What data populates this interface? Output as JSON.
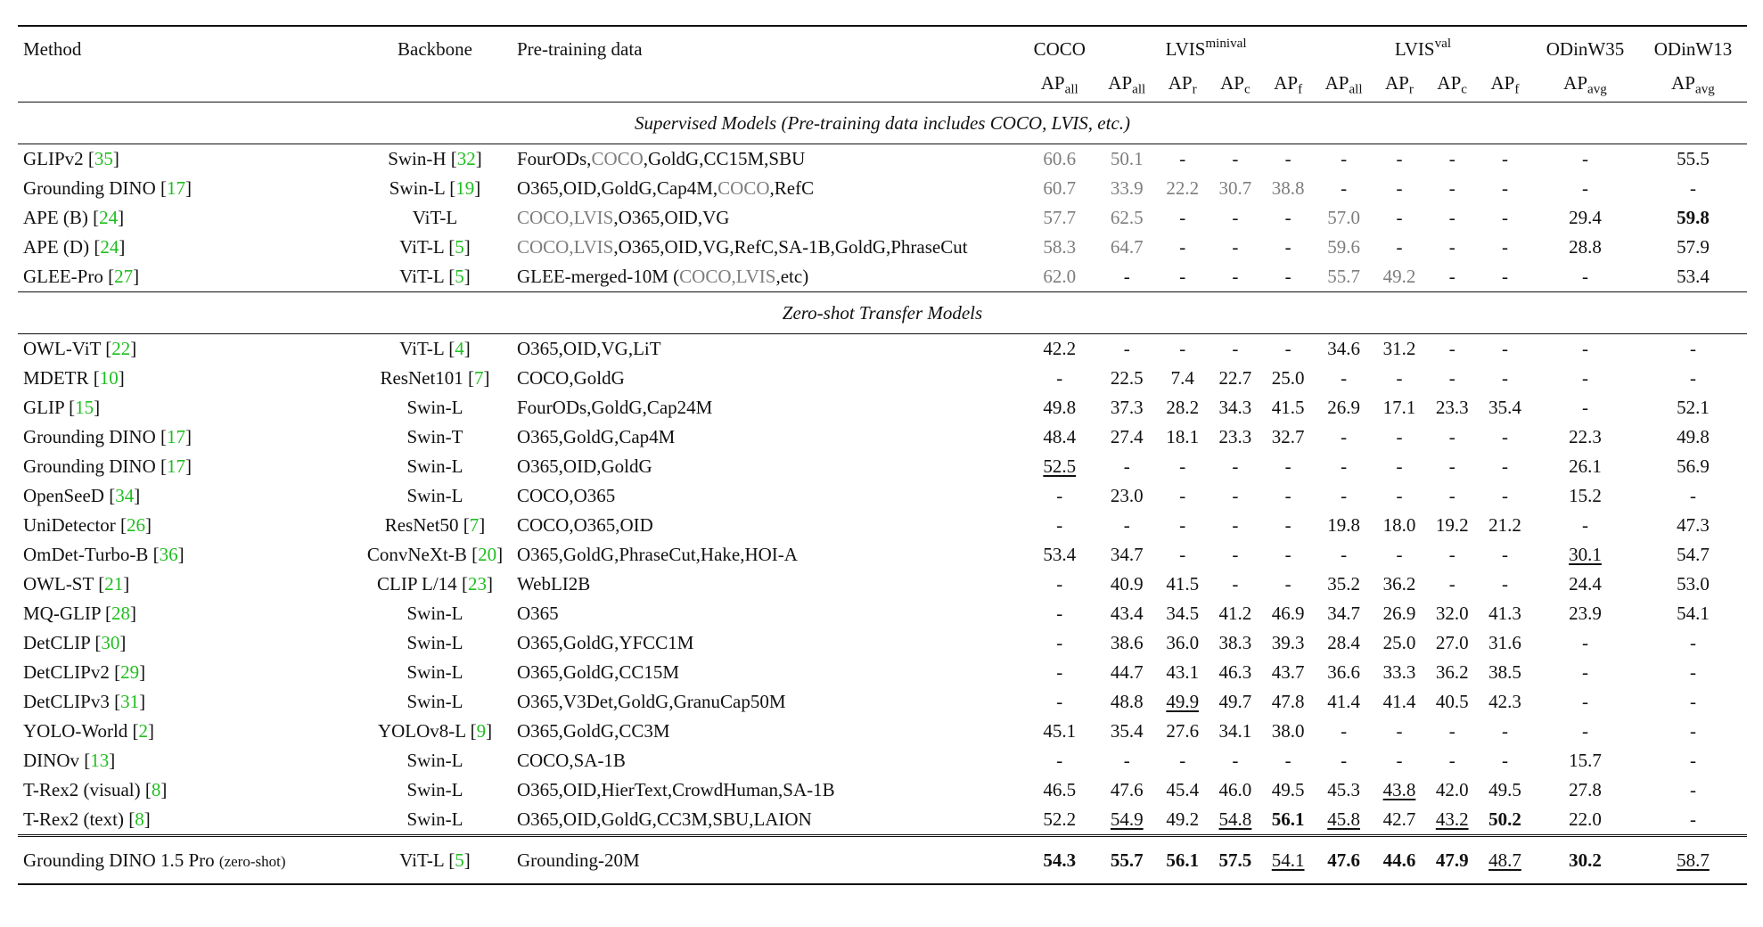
{
  "headers": {
    "method": "Method",
    "backbone": "Backbone",
    "pretrain": "Pre-training data",
    "coco": "COCO",
    "lvis_minival": "LVIS",
    "lvis_minival_sup": "minival",
    "lvis_val": "LVIS",
    "lvis_val_sup": "val",
    "odinw35": "ODinW35",
    "odinw13": "ODinW13",
    "ap": "AP",
    "sub_all": "all",
    "sub_r": "r",
    "sub_c": "c",
    "sub_f": "f",
    "sub_avg": "avg"
  },
  "sections": {
    "supervised": "Supervised Models (Pre-training data includes COCO, LVIS, etc.)",
    "zeroshot": "Zero-shot Transfer Models"
  },
  "supervised_rows": [
    {
      "method": {
        "name": "GLIPv2",
        "cite": "35"
      },
      "backbone": {
        "name": "Swin-H",
        "cite": "32"
      },
      "data": [
        {
          "t": "FourODs,"
        },
        {
          "t": "COCO",
          "g": true
        },
        {
          "t": ",GoldG,CC15M,SBU"
        }
      ],
      "cells": [
        {
          "v": "60.6",
          "g": true
        },
        {
          "v": "50.1",
          "g": true
        },
        {
          "v": "-"
        },
        {
          "v": "-"
        },
        {
          "v": "-"
        },
        {
          "v": "-"
        },
        {
          "v": "-"
        },
        {
          "v": "-"
        },
        {
          "v": "-"
        },
        {
          "v": "-"
        },
        {
          "v": "55.5"
        }
      ]
    },
    {
      "method": {
        "name": "Grounding DINO",
        "cite": "17"
      },
      "backbone": {
        "name": "Swin-L",
        "cite": "19"
      },
      "data": [
        {
          "t": "O365,OID,GoldG,Cap4M,"
        },
        {
          "t": "COCO",
          "g": true
        },
        {
          "t": ",RefC"
        }
      ],
      "cells": [
        {
          "v": "60.7",
          "g": true
        },
        {
          "v": "33.9",
          "g": true
        },
        {
          "v": "22.2",
          "g": true
        },
        {
          "v": "30.7",
          "g": true
        },
        {
          "v": "38.8",
          "g": true
        },
        {
          "v": "-"
        },
        {
          "v": "-"
        },
        {
          "v": "-"
        },
        {
          "v": "-"
        },
        {
          "v": "-"
        },
        {
          "v": "-"
        }
      ]
    },
    {
      "method": {
        "name": "APE (B)",
        "cite": "24"
      },
      "backbone": {
        "name": "ViT-L"
      },
      "data": [
        {
          "t": "COCO,LVIS",
          "g": true
        },
        {
          "t": ",O365,OID,VG"
        }
      ],
      "cells": [
        {
          "v": "57.7",
          "g": true
        },
        {
          "v": "62.5",
          "g": true
        },
        {
          "v": "-"
        },
        {
          "v": "-"
        },
        {
          "v": "-"
        },
        {
          "v": "57.0",
          "g": true
        },
        {
          "v": "-"
        },
        {
          "v": "-"
        },
        {
          "v": "-"
        },
        {
          "v": "29.4"
        },
        {
          "v": "59.8",
          "b": true
        }
      ]
    },
    {
      "method": {
        "name": "APE (D)",
        "cite": "24"
      },
      "backbone": {
        "name": "ViT-L",
        "cite": "5"
      },
      "data": [
        {
          "t": "COCO,LVIS",
          "g": true
        },
        {
          "t": ",O365,OID,VG,RefC,SA-1B,GoldG,PhraseCut"
        }
      ],
      "cells": [
        {
          "v": "58.3",
          "g": true
        },
        {
          "v": "64.7",
          "g": true
        },
        {
          "v": "-"
        },
        {
          "v": "-"
        },
        {
          "v": "-"
        },
        {
          "v": "59.6",
          "g": true
        },
        {
          "v": "-"
        },
        {
          "v": "-"
        },
        {
          "v": "-"
        },
        {
          "v": "28.8"
        },
        {
          "v": "57.9"
        }
      ]
    },
    {
      "method": {
        "name": "GLEE-Pro",
        "cite": "27"
      },
      "backbone": {
        "name": "ViT-L",
        "cite": "5"
      },
      "data": [
        {
          "t": "GLEE-merged-10M ("
        },
        {
          "t": "COCO,LVIS",
          "g": true
        },
        {
          "t": ",etc)"
        }
      ],
      "cells": [
        {
          "v": "62.0",
          "g": true
        },
        {
          "v": "-"
        },
        {
          "v": "-"
        },
        {
          "v": "-"
        },
        {
          "v": "-"
        },
        {
          "v": "55.7",
          "g": true
        },
        {
          "v": "49.2",
          "g": true
        },
        {
          "v": "-"
        },
        {
          "v": "-"
        },
        {
          "v": "-"
        },
        {
          "v": "53.4"
        }
      ]
    }
  ],
  "zeroshot_rows": [
    {
      "method": {
        "name": "OWL-ViT",
        "cite": "22"
      },
      "backbone": {
        "name": "ViT-L",
        "cite": "4"
      },
      "data": [
        {
          "t": "O365,OID,VG,LiT"
        }
      ],
      "cells": [
        {
          "v": "42.2"
        },
        {
          "v": "-"
        },
        {
          "v": "-"
        },
        {
          "v": "-"
        },
        {
          "v": "-"
        },
        {
          "v": "34.6"
        },
        {
          "v": "31.2"
        },
        {
          "v": "-"
        },
        {
          "v": "-"
        },
        {
          "v": "-"
        },
        {
          "v": "-"
        }
      ]
    },
    {
      "method": {
        "name": "MDETR",
        "cite": "10"
      },
      "backbone": {
        "name": "ResNet101",
        "cite": "7"
      },
      "data": [
        {
          "t": "COCO,GoldG"
        }
      ],
      "cells": [
        {
          "v": "-"
        },
        {
          "v": "22.5"
        },
        {
          "v": "7.4"
        },
        {
          "v": "22.7"
        },
        {
          "v": "25.0"
        },
        {
          "v": "-"
        },
        {
          "v": "-"
        },
        {
          "v": "-"
        },
        {
          "v": "-"
        },
        {
          "v": "-"
        },
        {
          "v": "-"
        }
      ]
    },
    {
      "method": {
        "name": "GLIP",
        "cite": "15"
      },
      "backbone": {
        "name": "Swin-L"
      },
      "data": [
        {
          "t": "FourODs,GoldG,Cap24M"
        }
      ],
      "cells": [
        {
          "v": "49.8"
        },
        {
          "v": "37.3"
        },
        {
          "v": "28.2"
        },
        {
          "v": "34.3"
        },
        {
          "v": "41.5"
        },
        {
          "v": "26.9"
        },
        {
          "v": "17.1"
        },
        {
          "v": "23.3"
        },
        {
          "v": "35.4"
        },
        {
          "v": "-"
        },
        {
          "v": "52.1"
        }
      ]
    },
    {
      "method": {
        "name": "Grounding DINO",
        "cite": "17"
      },
      "backbone": {
        "name": "Swin-T"
      },
      "data": [
        {
          "t": "O365,GoldG,Cap4M"
        }
      ],
      "cells": [
        {
          "v": "48.4"
        },
        {
          "v": "27.4"
        },
        {
          "v": "18.1"
        },
        {
          "v": "23.3"
        },
        {
          "v": "32.7"
        },
        {
          "v": "-"
        },
        {
          "v": "-"
        },
        {
          "v": "-"
        },
        {
          "v": "-"
        },
        {
          "v": "22.3"
        },
        {
          "v": "49.8"
        }
      ]
    },
    {
      "method": {
        "name": "Grounding DINO",
        "cite": "17"
      },
      "backbone": {
        "name": "Swin-L"
      },
      "data": [
        {
          "t": "O365,OID,GoldG"
        }
      ],
      "cells": [
        {
          "v": "52.5",
          "u": true
        },
        {
          "v": "-"
        },
        {
          "v": "-"
        },
        {
          "v": "-"
        },
        {
          "v": "-"
        },
        {
          "v": "-"
        },
        {
          "v": "-"
        },
        {
          "v": "-"
        },
        {
          "v": "-"
        },
        {
          "v": "26.1"
        },
        {
          "v": "56.9"
        }
      ]
    },
    {
      "method": {
        "name": "OpenSeeD",
        "cite": "34"
      },
      "backbone": {
        "name": "Swin-L"
      },
      "data": [
        {
          "t": "COCO,O365"
        }
      ],
      "cells": [
        {
          "v": "-"
        },
        {
          "v": "23.0"
        },
        {
          "v": "-"
        },
        {
          "v": "-"
        },
        {
          "v": "-"
        },
        {
          "v": "-"
        },
        {
          "v": "-"
        },
        {
          "v": "-"
        },
        {
          "v": "-"
        },
        {
          "v": "15.2"
        },
        {
          "v": "-"
        }
      ]
    },
    {
      "method": {
        "name": "UniDetector",
        "cite": "26"
      },
      "backbone": {
        "name": "ResNet50",
        "cite": "7"
      },
      "data": [
        {
          "t": "COCO,O365,OID"
        }
      ],
      "cells": [
        {
          "v": "-"
        },
        {
          "v": "-"
        },
        {
          "v": "-"
        },
        {
          "v": "-"
        },
        {
          "v": "-"
        },
        {
          "v": "19.8"
        },
        {
          "v": "18.0"
        },
        {
          "v": "19.2"
        },
        {
          "v": "21.2"
        },
        {
          "v": "-"
        },
        {
          "v": "47.3"
        }
      ]
    },
    {
      "method": {
        "name": "OmDet-Turbo-B",
        "cite": "36"
      },
      "backbone": {
        "name": "ConvNeXt-B",
        "cite": "20"
      },
      "data": [
        {
          "t": "O365,GoldG,PhraseCut,Hake,HOI-A"
        }
      ],
      "cells": [
        {
          "v": "53.4"
        },
        {
          "v": "34.7"
        },
        {
          "v": "-"
        },
        {
          "v": "-"
        },
        {
          "v": "-"
        },
        {
          "v": "-"
        },
        {
          "v": "-"
        },
        {
          "v": "-"
        },
        {
          "v": "-"
        },
        {
          "v": "30.1",
          "u": true
        },
        {
          "v": "54.7"
        }
      ]
    },
    {
      "method": {
        "name": "OWL-ST",
        "cite": "21"
      },
      "backbone": {
        "name": "CLIP L/14",
        "cite": "23"
      },
      "data": [
        {
          "t": "WebLI2B"
        }
      ],
      "cells": [
        {
          "v": "-"
        },
        {
          "v": "40.9"
        },
        {
          "v": "41.5"
        },
        {
          "v": "-"
        },
        {
          "v": "-"
        },
        {
          "v": "35.2"
        },
        {
          "v": "36.2"
        },
        {
          "v": "-"
        },
        {
          "v": "-"
        },
        {
          "v": "24.4"
        },
        {
          "v": "53.0"
        }
      ]
    },
    {
      "method": {
        "name": "MQ-GLIP",
        "cite": "28"
      },
      "backbone": {
        "name": "Swin-L"
      },
      "data": [
        {
          "t": "O365"
        }
      ],
      "cells": [
        {
          "v": "-"
        },
        {
          "v": "43.4"
        },
        {
          "v": "34.5"
        },
        {
          "v": "41.2"
        },
        {
          "v": "46.9"
        },
        {
          "v": "34.7"
        },
        {
          "v": "26.9"
        },
        {
          "v": "32.0"
        },
        {
          "v": "41.3"
        },
        {
          "v": "23.9"
        },
        {
          "v": "54.1"
        }
      ]
    },
    {
      "method": {
        "name": "DetCLIP",
        "cite": "30"
      },
      "backbone": {
        "name": "Swin-L"
      },
      "data": [
        {
          "t": "O365,GoldG,YFCC1M"
        }
      ],
      "cells": [
        {
          "v": "-"
        },
        {
          "v": "38.6"
        },
        {
          "v": "36.0"
        },
        {
          "v": "38.3"
        },
        {
          "v": "39.3"
        },
        {
          "v": "28.4"
        },
        {
          "v": "25.0"
        },
        {
          "v": "27.0"
        },
        {
          "v": "31.6"
        },
        {
          "v": "-"
        },
        {
          "v": "-"
        }
      ]
    },
    {
      "method": {
        "name": "DetCLIPv2",
        "cite": "29"
      },
      "backbone": {
        "name": "Swin-L"
      },
      "data": [
        {
          "t": "O365,GoldG,CC15M"
        }
      ],
      "cells": [
        {
          "v": "-"
        },
        {
          "v": "44.7"
        },
        {
          "v": "43.1"
        },
        {
          "v": "46.3"
        },
        {
          "v": "43.7"
        },
        {
          "v": "36.6"
        },
        {
          "v": "33.3"
        },
        {
          "v": "36.2"
        },
        {
          "v": "38.5"
        },
        {
          "v": "-"
        },
        {
          "v": "-"
        }
      ]
    },
    {
      "method": {
        "name": "DetCLIPv3",
        "cite": "31"
      },
      "backbone": {
        "name": "Swin-L"
      },
      "data": [
        {
          "t": "O365,V3Det,GoldG,GranuCap50M"
        }
      ],
      "cells": [
        {
          "v": "-"
        },
        {
          "v": "48.8"
        },
        {
          "v": "49.9",
          "u": true
        },
        {
          "v": "49.7"
        },
        {
          "v": "47.8"
        },
        {
          "v": "41.4"
        },
        {
          "v": "41.4"
        },
        {
          "v": "40.5"
        },
        {
          "v": "42.3"
        },
        {
          "v": "-"
        },
        {
          "v": "-"
        }
      ]
    },
    {
      "method": {
        "name": "YOLO-World",
        "cite": "2"
      },
      "backbone": {
        "name": "YOLOv8-L",
        "cite": "9"
      },
      "data": [
        {
          "t": "O365,GoldG,CC3M"
        }
      ],
      "cells": [
        {
          "v": "45.1"
        },
        {
          "v": "35.4"
        },
        {
          "v": "27.6"
        },
        {
          "v": "34.1"
        },
        {
          "v": "38.0"
        },
        {
          "v": "-"
        },
        {
          "v": "-"
        },
        {
          "v": "-"
        },
        {
          "v": "-"
        },
        {
          "v": "-"
        },
        {
          "v": "-"
        }
      ]
    },
    {
      "method": {
        "name": "DINOv",
        "cite": "13"
      },
      "backbone": {
        "name": "Swin-L"
      },
      "data": [
        {
          "t": "COCO,SA-1B"
        }
      ],
      "cells": [
        {
          "v": "-"
        },
        {
          "v": "-"
        },
        {
          "v": "-"
        },
        {
          "v": "-"
        },
        {
          "v": "-"
        },
        {
          "v": "-"
        },
        {
          "v": "-"
        },
        {
          "v": "-"
        },
        {
          "v": "-"
        },
        {
          "v": "15.7"
        },
        {
          "v": "-"
        }
      ]
    },
    {
      "method": {
        "name": "T-Rex2 (visual)",
        "cite": "8"
      },
      "backbone": {
        "name": "Swin-L"
      },
      "data": [
        {
          "t": "O365,OID,HierText,CrowdHuman,SA-1B"
        }
      ],
      "cells": [
        {
          "v": "46.5"
        },
        {
          "v": "47.6"
        },
        {
          "v": "45.4"
        },
        {
          "v": "46.0"
        },
        {
          "v": "49.5"
        },
        {
          "v": "45.3"
        },
        {
          "v": "43.8",
          "u": true
        },
        {
          "v": "42.0"
        },
        {
          "v": "49.5"
        },
        {
          "v": "27.8"
        },
        {
          "v": "-"
        }
      ]
    },
    {
      "method": {
        "name": "T-Rex2 (text)",
        "cite": "8"
      },
      "backbone": {
        "name": "Swin-L"
      },
      "data": [
        {
          "t": "O365,OID,GoldG,CC3M,SBU,LAION"
        }
      ],
      "cells": [
        {
          "v": "52.2"
        },
        {
          "v": "54.9",
          "u": true
        },
        {
          "v": "49.2"
        },
        {
          "v": "54.8",
          "u": true
        },
        {
          "v": "56.1",
          "b": true
        },
        {
          "v": "45.8",
          "u": true
        },
        {
          "v": "42.7"
        },
        {
          "v": "43.2",
          "u": true
        },
        {
          "v": "50.2",
          "b": true
        },
        {
          "v": "22.0"
        },
        {
          "v": "-"
        }
      ]
    }
  ],
  "final_row": {
    "method": {
      "name": "Grounding DINO 1.5 Pro",
      "note": "(zero-shot)"
    },
    "backbone": {
      "name": "ViT-L",
      "cite": "5"
    },
    "data": [
      {
        "t": "Grounding-20M"
      }
    ],
    "cells": [
      {
        "v": "54.3",
        "b": true
      },
      {
        "v": "55.7",
        "b": true
      },
      {
        "v": "56.1",
        "b": true
      },
      {
        "v": "57.5",
        "b": true
      },
      {
        "v": "54.1",
        "u": true
      },
      {
        "v": "47.6",
        "b": true
      },
      {
        "v": "44.6",
        "b": true
      },
      {
        "v": "47.9",
        "b": true
      },
      {
        "v": "48.7",
        "u": true
      },
      {
        "v": "30.2",
        "b": true
      },
      {
        "v": "58.7",
        "u": true
      }
    ]
  },
  "colors": {
    "citation": "#1fbe1f",
    "pretrain_overlap_gray": "#7d7d7d",
    "text": "#111111"
  }
}
